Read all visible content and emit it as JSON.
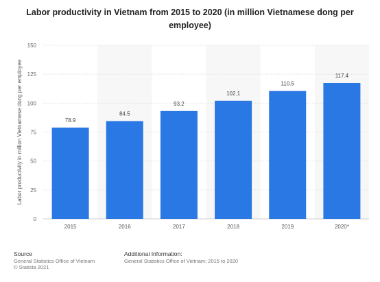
{
  "chart_data": {
    "type": "bar",
    "title": "Labor productivity in Vietnam from 2015 to 2020 (in million Vietnamese dong per employee)",
    "ylabel": "Labor productivity  in million Vietnamese dong per employee",
    "xlabel": "",
    "categories": [
      "2015",
      "2016",
      "2017",
      "2018",
      "2019",
      "2020*"
    ],
    "values": [
      78.9,
      84.5,
      93.2,
      102.1,
      110.5,
      117.4
    ],
    "value_labels": [
      "78.9",
      "84.5",
      "93.2",
      "102.1",
      "110.5",
      "117.4"
    ],
    "ylim": [
      0,
      150
    ],
    "yticks": [
      0,
      25,
      50,
      75,
      100,
      125,
      150
    ],
    "grid": true,
    "bar_color": "#2a78e4"
  },
  "footer": {
    "source_heading": "Source",
    "source_line1": "General Statistics Office of Vietnam",
    "source_line2": "© Statista 2021",
    "info_heading": "Additional Information:",
    "info_line1": "General Statistics Office of Vietnam; 2015 to 2020"
  }
}
